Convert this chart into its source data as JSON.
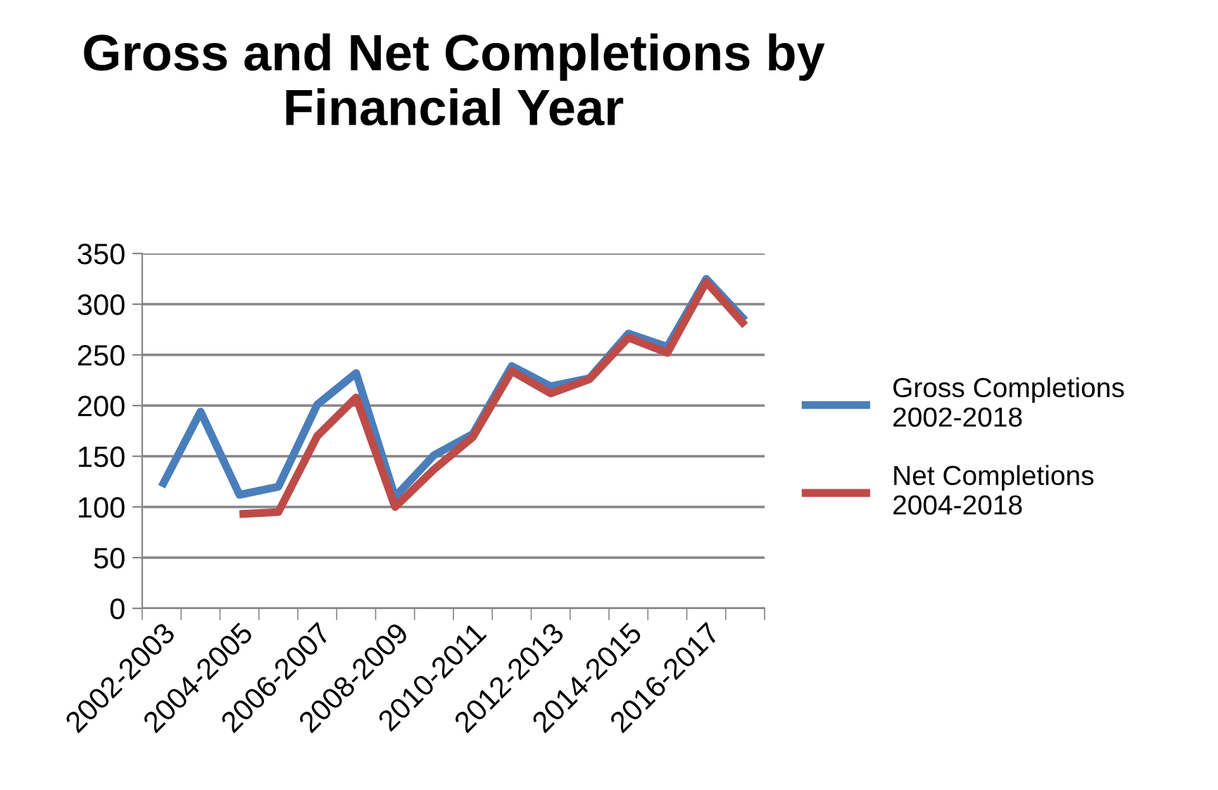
{
  "chart_data": {
    "type": "line",
    "title": "Gross and Net Completions by Financial Year",
    "categories": [
      "2002-2003",
      null,
      "2004-2005",
      null,
      "2006-2007",
      null,
      "2008-2009",
      null,
      "2010-2011",
      null,
      "2012-2013",
      null,
      "2014-2015",
      null,
      "2016-2017",
      null
    ],
    "series": [
      {
        "name": "Gross Completions 2002-2018",
        "color": "#4a7ebb",
        "values": [
          120,
          194,
          112,
          120,
          201,
          232,
          110,
          151,
          172,
          239,
          219,
          227,
          271,
          258,
          325,
          284
        ]
      },
      {
        "name": "Net Completions 2004-2018",
        "color": "#be4b48",
        "values": [
          null,
          null,
          93,
          95,
          170,
          208,
          100,
          137,
          169,
          234,
          212,
          226,
          267,
          252,
          322,
          279
        ]
      }
    ],
    "ylim": [
      0,
      350
    ],
    "yticks": [
      0,
      50,
      100,
      150,
      200,
      250,
      300,
      350
    ],
    "grid": "y",
    "legend": "right",
    "marker": "none",
    "line_style": "solid"
  }
}
